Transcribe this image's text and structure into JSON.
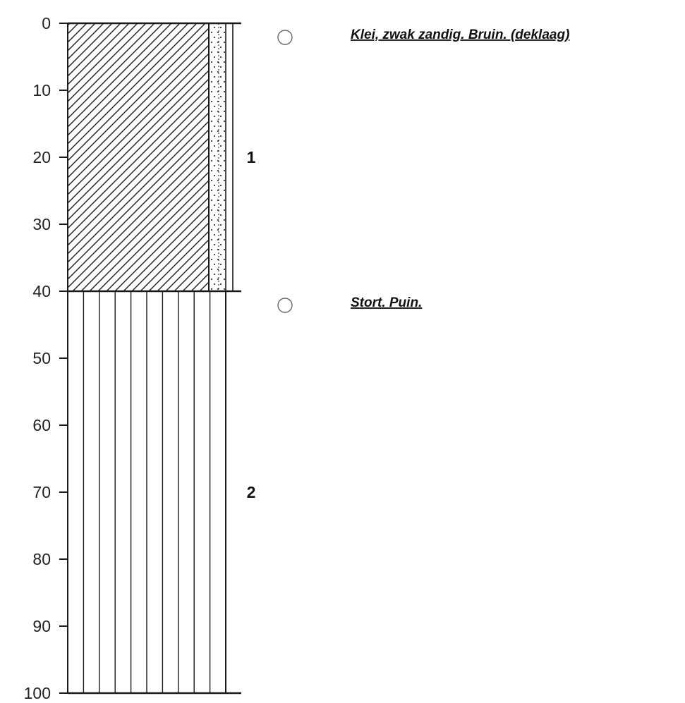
{
  "chart_data": {
    "type": "borehole-log",
    "depth_range": [
      0,
      100
    ],
    "depth_ticks": [
      0,
      10,
      20,
      30,
      40,
      50,
      60,
      70,
      80,
      90,
      100
    ],
    "layers": [
      {
        "number": "1",
        "top": 0,
        "bottom": 40,
        "pattern": "diagonal-hatch-with-sand-strip",
        "description": "Klei, zwak zandig. Bruin. (deklaag)",
        "marker": "circle"
      },
      {
        "number": "2",
        "top": 40,
        "bottom": 100,
        "pattern": "vertical-lines",
        "description": "Stort. Puin.",
        "marker": "circle"
      }
    ]
  },
  "colors": {
    "line": "#1a1a1a",
    "background": "#ffffff"
  }
}
